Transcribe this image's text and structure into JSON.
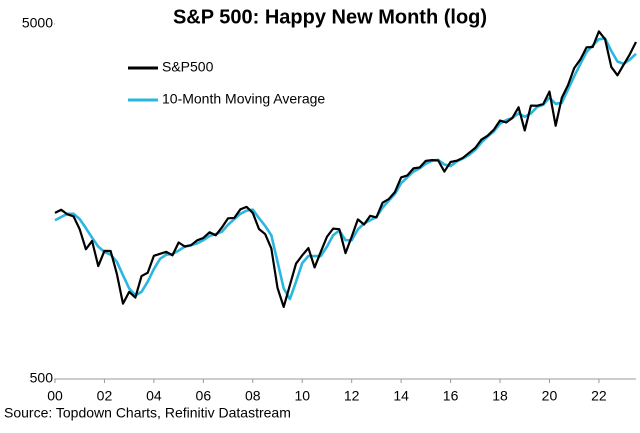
{
  "chart_data": {
    "type": "line",
    "title": "S&P 500: Happy New Month (log)",
    "source": "Source: Topdown Charts, Refinitiv Datastream",
    "log_y": true,
    "grid": false,
    "legend": "upper-left",
    "x": [
      2000,
      2000.25,
      2000.5,
      2000.75,
      2001,
      2001.25,
      2001.5,
      2001.75,
      2002,
      2002.25,
      2002.5,
      2002.75,
      2003,
      2003.25,
      2003.5,
      2003.75,
      2004,
      2004.25,
      2004.5,
      2004.75,
      2005,
      2005.25,
      2005.5,
      2005.75,
      2006,
      2006.25,
      2006.5,
      2006.75,
      2007,
      2007.25,
      2007.5,
      2007.75,
      2008,
      2008.25,
      2008.5,
      2008.75,
      2009,
      2009.25,
      2009.5,
      2009.75,
      2010,
      2010.25,
      2010.5,
      2010.75,
      2011,
      2011.25,
      2011.5,
      2011.75,
      2012,
      2012.25,
      2012.5,
      2012.75,
      2013,
      2013.25,
      2013.5,
      2013.75,
      2014,
      2014.25,
      2014.5,
      2014.75,
      2015,
      2015.25,
      2015.5,
      2015.75,
      2016,
      2016.25,
      2016.5,
      2016.75,
      2017,
      2017.25,
      2017.5,
      2017.75,
      2018,
      2018.25,
      2018.5,
      2018.75,
      2019,
      2019.25,
      2019.5,
      2019.75,
      2020,
      2020.25,
      2020.5,
      2020.75,
      2021,
      2021.25,
      2021.5,
      2021.75,
      2022,
      2022.25,
      2022.5,
      2022.75,
      2023,
      2023.25,
      2023.5
    ],
    "series": [
      {
        "name": "S&P500",
        "color": "#000000",
        "width": 2.2,
        "values": [
          1469,
          1499,
          1455,
          1436,
          1320,
          1160,
          1224,
          1040,
          1148,
          1147,
          990,
          815,
          880,
          848,
          975,
          996,
          1112,
          1126,
          1141,
          1115,
          1212,
          1181,
          1191,
          1229,
          1248,
          1295,
          1270,
          1336,
          1418,
          1421,
          1503,
          1527,
          1468,
          1323,
          1280,
          1166,
          903,
          798,
          919,
          1057,
          1115,
          1169,
          1031,
          1141,
          1258,
          1326,
          1321,
          1131,
          1258,
          1408,
          1362,
          1441,
          1426,
          1569,
          1606,
          1682,
          1848,
          1872,
          1960,
          1972,
          2059,
          2068,
          2063,
          1920,
          2044,
          2060,
          2099,
          2168,
          2239,
          2363,
          2423,
          2519,
          2674,
          2640,
          2718,
          2914,
          2507,
          2946,
          2942,
          2977,
          3226,
          2585,
          3100,
          3363,
          3756,
          3973,
          4298,
          4308,
          4766,
          4530,
          3785,
          3585,
          3840,
          4109,
          4450
        ]
      },
      {
        "name": "10-Month Moving Average",
        "color": "#29b6e0",
        "width": 2.6,
        "values": [
          1400,
          1430,
          1460,
          1460,
          1410,
          1330,
          1250,
          1180,
          1140,
          1120,
          1070,
          980,
          900,
          860,
          880,
          940,
          1020,
          1090,
          1120,
          1125,
          1150,
          1180,
          1190,
          1205,
          1230,
          1265,
          1280,
          1300,
          1360,
          1410,
          1460,
          1490,
          1500,
          1420,
          1350,
          1270,
          1070,
          900,
          840,
          940,
          1060,
          1110,
          1110,
          1110,
          1180,
          1270,
          1310,
          1230,
          1230,
          1320,
          1370,
          1400,
          1430,
          1520,
          1590,
          1660,
          1780,
          1850,
          1920,
          1960,
          2020,
          2060,
          2070,
          2010,
          1990,
          2050,
          2090,
          2140,
          2210,
          2320,
          2410,
          2490,
          2620,
          2680,
          2720,
          2800,
          2740,
          2800,
          2920,
          2960,
          3100,
          2980,
          3000,
          3270,
          3560,
          3860,
          4170,
          4350,
          4530,
          4550,
          4200,
          3920,
          3860,
          3970,
          4120
        ]
      }
    ],
    "xlim": [
      2000,
      2023.5
    ],
    "xticks": [
      {
        "value": 2000,
        "label": "00"
      },
      {
        "value": 2002,
        "label": "02"
      },
      {
        "value": 2004,
        "label": "04"
      },
      {
        "value": 2006,
        "label": "06"
      },
      {
        "value": 2008,
        "label": "08"
      },
      {
        "value": 2010,
        "label": "10"
      },
      {
        "value": 2012,
        "label": "12"
      },
      {
        "value": 2014,
        "label": "14"
      },
      {
        "value": 2016,
        "label": "16"
      },
      {
        "value": 2018,
        "label": "18"
      },
      {
        "value": 2020,
        "label": "20"
      },
      {
        "value": 2022,
        "label": "22"
      }
    ],
    "ylim": [
      500,
      5000
    ],
    "yticks": [
      500,
      5000
    ]
  }
}
